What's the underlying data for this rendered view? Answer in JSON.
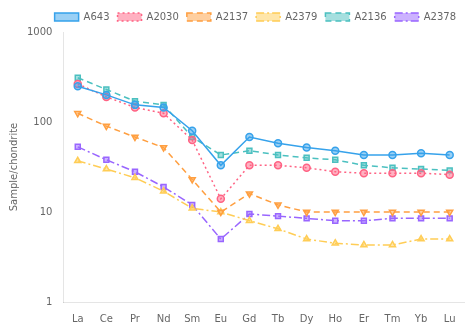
{
  "chart_data": {
    "type": "line",
    "categories": [
      "La",
      "Ce",
      "Pr",
      "Nd",
      "Sm",
      "Eu",
      "Gd",
      "Tb",
      "Dy",
      "Ho",
      "Er",
      "Tm",
      "Yb",
      "Lu"
    ],
    "series": [
      {
        "name": "A643",
        "values": [
          250,
          200,
          155,
          145,
          80,
          33,
          68,
          58,
          52,
          48,
          43,
          43,
          45,
          43
        ],
        "marker": "circle",
        "line_style": "solid"
      },
      {
        "name": "A2030",
        "values": [
          265,
          190,
          145,
          125,
          63,
          14,
          33,
          33,
          31,
          28,
          27,
          27,
          27,
          26
        ],
        "marker": "circle",
        "line_style": "dotted"
      },
      {
        "name": "A2137",
        "values": [
          125,
          90,
          68,
          52,
          23,
          10,
          16,
          12,
          10,
          10,
          10,
          10,
          10,
          10
        ],
        "marker": "triangle_down",
        "line_style": "dashed"
      },
      {
        "name": "A2379",
        "values": [
          37,
          30,
          24,
          17,
          11,
          10,
          8,
          6.5,
          5,
          4.5,
          4.3,
          4.3,
          5,
          5
        ],
        "marker": "triangle_up",
        "line_style": "dashdot"
      },
      {
        "name": "A2136",
        "values": [
          310,
          230,
          170,
          155,
          68,
          43,
          48,
          43,
          40,
          38,
          33,
          31,
          30,
          29
        ],
        "marker": "square",
        "line_style": "dashed"
      },
      {
        "name": "A2378",
        "values": [
          53,
          38,
          28,
          19,
          12,
          5,
          9.5,
          9,
          8.5,
          8,
          8,
          8.5,
          8.5,
          8.5
        ],
        "marker": "square",
        "line_style": "dashdot"
      }
    ],
    "ylabel": "Sample/chondrite",
    "ylim": [
      1,
      1000
    ],
    "yticks": [
      1,
      10,
      100,
      1000
    ],
    "log": "y",
    "grid": false,
    "legend": "upper right"
  }
}
